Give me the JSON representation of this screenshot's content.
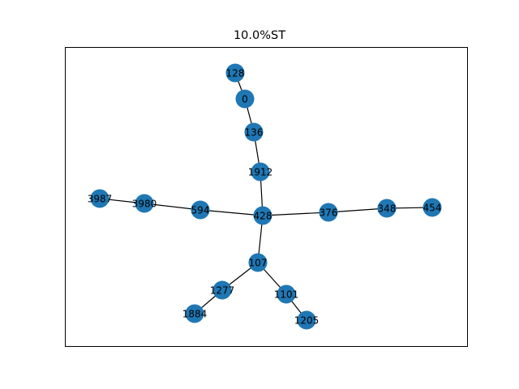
{
  "figure": {
    "title": "10.0%ST"
  },
  "graph": {
    "node_color": "#1f77b4",
    "edge_color": "#000000",
    "nodes": [
      "128",
      "0",
      "136",
      "1912",
      "3987",
      "3980",
      "594",
      "428",
      "376",
      "348",
      "454",
      "107",
      "1277",
      "1101",
      "1884",
      "1205"
    ],
    "edges": [
      [
        "128",
        "0"
      ],
      [
        "0",
        "136"
      ],
      [
        "136",
        "1912"
      ],
      [
        "1912",
        "428"
      ],
      [
        "3987",
        "3980"
      ],
      [
        "3980",
        "594"
      ],
      [
        "594",
        "428"
      ],
      [
        "428",
        "376"
      ],
      [
        "376",
        "348"
      ],
      [
        "348",
        "454"
      ],
      [
        "428",
        "107"
      ],
      [
        "107",
        "1277"
      ],
      [
        "1277",
        "1884"
      ],
      [
        "107",
        "1101"
      ],
      [
        "1101",
        "1205"
      ]
    ]
  }
}
